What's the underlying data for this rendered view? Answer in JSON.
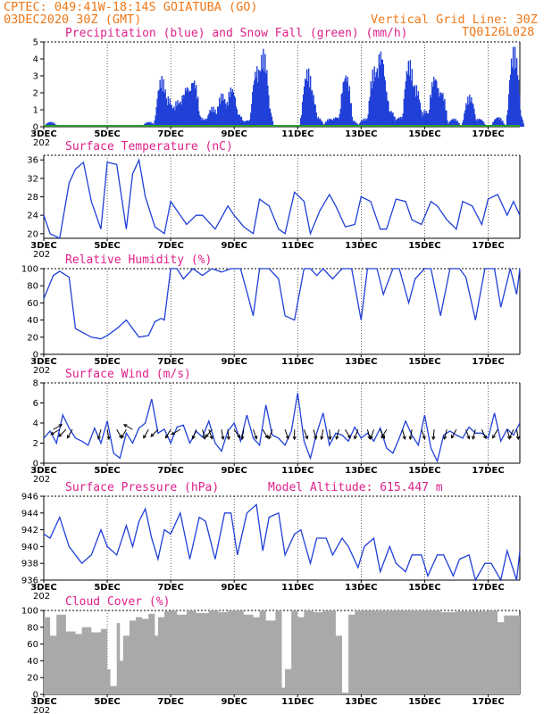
{
  "header": {
    "line1": "CPTEC:   049:41W-18:14S  GOIATUBA (GO)",
    "line2_left": "03DEC2020 30Z (GMT)",
    "line2_right": "Vertical Grid Line: 30Z",
    "line3_right": "TQ0126L028"
  },
  "x_axis": {
    "day_range": [
      3,
      18
    ],
    "tick_days": [
      3,
      5,
      7,
      9,
      11,
      13,
      15,
      17
    ],
    "tick_labels": [
      "3DEC",
      "5DEC",
      "7DEC",
      "9DEC",
      "11DEC",
      "13DEC",
      "15DEC",
      "17DEC"
    ],
    "sub_label": "202"
  },
  "colors": {
    "curve": "#2040d8",
    "snow": "#2a9a2a",
    "cloud": "#a9a9a9",
    "title": "#e0208a",
    "header": "#f07818"
  },
  "chart_data": [
    {
      "id": "precip",
      "type": "bar",
      "title": "Precipitation (blue) and Snow Fall (green) (mm/h)",
      "ylim": [
        0,
        5
      ],
      "yticks": [
        0,
        1,
        2,
        3,
        4,
        5
      ],
      "series": [
        {
          "name": "Precipitation",
          "events": [
            [
              3.2,
              0.3
            ],
            [
              6.3,
              0.3
            ],
            [
              6.7,
              3.0
            ],
            [
              6.9,
              1.8
            ],
            [
              7.0,
              1.2
            ],
            [
              7.2,
              1.6
            ],
            [
              7.4,
              2.0
            ],
            [
              7.5,
              2.5
            ],
            [
              7.7,
              2.9
            ],
            [
              7.9,
              0.6
            ],
            [
              8.1,
              0.5
            ],
            [
              8.2,
              0.4
            ],
            [
              8.3,
              1.2
            ],
            [
              8.6,
              2.0
            ],
            [
              8.9,
              2.4
            ],
            [
              9.1,
              0.8
            ],
            [
              9.4,
              0.4
            ],
            [
              9.7,
              3.6
            ],
            [
              9.9,
              4.6
            ],
            [
              10.0,
              1.5
            ],
            [
              11.3,
              3.5
            ],
            [
              11.4,
              2.2
            ],
            [
              11.6,
              0.6
            ],
            [
              12.0,
              0.5
            ],
            [
              12.2,
              0.6
            ],
            [
              12.5,
              3.2
            ],
            [
              12.7,
              0.4
            ],
            [
              13.1,
              0.5
            ],
            [
              13.4,
              3.6
            ],
            [
              13.6,
              4.6
            ],
            [
              13.7,
              2.5
            ],
            [
              13.9,
              1.0
            ],
            [
              14.2,
              0.6
            ],
            [
              14.5,
              4.0
            ],
            [
              14.7,
              2.5
            ],
            [
              15.0,
              1.0
            ],
            [
              15.3,
              3.1
            ],
            [
              15.5,
              2.2
            ],
            [
              15.9,
              0.5
            ],
            [
              16.4,
              1.9
            ],
            [
              16.7,
              0.5
            ],
            [
              17.3,
              0.6
            ],
            [
              17.8,
              4.8
            ],
            [
              17.9,
              1.0
            ]
          ]
        },
        {
          "name": "Snow Fall",
          "values": 0
        }
      ]
    },
    {
      "id": "temperature",
      "type": "line",
      "title": "Surface Temperature (nC)",
      "ylim": [
        19,
        37
      ],
      "yticks": [
        20,
        24,
        28,
        32,
        36
      ],
      "x": [
        3.0,
        3.2,
        3.5,
        3.8,
        4.0,
        4.25,
        4.5,
        4.8,
        5.0,
        5.3,
        5.6,
        5.8,
        6.0,
        6.2,
        6.5,
        6.8,
        7.0,
        7.2,
        7.5,
        7.8,
        8.0,
        8.4,
        8.8,
        9.0,
        9.3,
        9.6,
        9.8,
        10.1,
        10.4,
        10.6,
        10.9,
        11.2,
        11.4,
        11.7,
        12.0,
        12.2,
        12.5,
        12.8,
        13.0,
        13.3,
        13.6,
        13.8,
        14.1,
        14.4,
        14.6,
        14.9,
        15.2,
        15.4,
        15.7,
        16.0,
        16.2,
        16.5,
        16.8,
        17.0,
        17.3,
        17.6,
        17.8,
        18.0
      ],
      "y": [
        24,
        20,
        19,
        31,
        34,
        35.5,
        27,
        21,
        35.5,
        35,
        21,
        33,
        36,
        28,
        21.5,
        20,
        27,
        25,
        22,
        24,
        24,
        21,
        26,
        24,
        21.5,
        20,
        27.5,
        26,
        21,
        20,
        29,
        27,
        20,
        25,
        28.5,
        26,
        21.5,
        22,
        28,
        27,
        21,
        21,
        27.5,
        27,
        23,
        22,
        27,
        26,
        23,
        21,
        27,
        26,
        22,
        27.5,
        28.5,
        24,
        27,
        24
      ]
    },
    {
      "id": "humidity",
      "type": "line",
      "title": "Relative Humidity (%)",
      "ylim": [
        0,
        100
      ],
      "yticks": [
        0,
        20,
        40,
        60,
        80,
        100
      ],
      "x": [
        3.0,
        3.3,
        3.5,
        3.8,
        4.0,
        4.5,
        4.8,
        5.0,
        5.3,
        5.6,
        6.0,
        6.3,
        6.5,
        6.7,
        6.8,
        7.0,
        7.2,
        7.4,
        7.7,
        8.0,
        8.3,
        8.6,
        8.9,
        9.2,
        9.4,
        9.6,
        9.8,
        10.1,
        10.4,
        10.6,
        10.9,
        11.2,
        11.4,
        11.6,
        11.8,
        12.1,
        12.4,
        12.7,
        13.0,
        13.2,
        13.5,
        13.7,
        14.0,
        14.2,
        14.5,
        14.7,
        15.0,
        15.2,
        15.5,
        15.8,
        16.1,
        16.3,
        16.6,
        16.9,
        17.2,
        17.4,
        17.7,
        17.9,
        18.0
      ],
      "y": [
        65,
        92,
        97,
        90,
        30,
        20,
        18,
        22,
        30,
        40,
        20,
        22,
        38,
        42,
        40,
        100,
        100,
        88,
        100,
        92,
        100,
        96,
        100,
        100,
        73,
        45,
        100,
        100,
        88,
        45,
        40,
        100,
        100,
        92,
        100,
        88,
        100,
        100,
        40,
        100,
        100,
        70,
        100,
        100,
        60,
        88,
        100,
        100,
        45,
        100,
        100,
        90,
        40,
        100,
        100,
        55,
        100,
        70,
        100
      ]
    },
    {
      "id": "wind",
      "type": "line",
      "title": "Surface Wind (m/s)",
      "ylim": [
        0,
        8
      ],
      "yticks": [
        0,
        2,
        4,
        6,
        8
      ],
      "x": [
        3.0,
        3.2,
        3.4,
        3.6,
        3.8,
        4.0,
        4.2,
        4.4,
        4.6,
        4.8,
        5.0,
        5.2,
        5.4,
        5.6,
        5.8,
        6.0,
        6.2,
        6.4,
        6.6,
        6.8,
        7.0,
        7.2,
        7.4,
        7.6,
        7.8,
        8.0,
        8.2,
        8.4,
        8.6,
        8.8,
        9.0,
        9.2,
        9.4,
        9.6,
        9.8,
        10.0,
        10.2,
        10.4,
        10.6,
        10.8,
        11.0,
        11.2,
        11.4,
        11.6,
        11.8,
        12.0,
        12.2,
        12.4,
        12.6,
        12.8,
        13.0,
        13.2,
        13.4,
        13.6,
        13.8,
        14.0,
        14.2,
        14.4,
        14.6,
        14.8,
        15.0,
        15.2,
        15.4,
        15.6,
        15.8,
        16.0,
        16.2,
        16.4,
        16.6,
        16.8,
        17.0,
        17.2,
        17.4,
        17.6,
        17.8,
        18.0
      ],
      "y": [
        2.5,
        3.2,
        2.0,
        4.8,
        3.5,
        2.5,
        2.2,
        1.8,
        3.5,
        2.0,
        4.2,
        1.0,
        0.5,
        3.0,
        2.0,
        3.5,
        4.0,
        6.4,
        3.0,
        3.4,
        2.0,
        3.6,
        3.8,
        2.0,
        3.2,
        2.6,
        4.2,
        2.0,
        1.2,
        3.2,
        4.0,
        2.2,
        4.8,
        2.5,
        1.8,
        5.8,
        2.8,
        2.5,
        1.8,
        3.2,
        7.0,
        2.2,
        0.5,
        3.0,
        5.0,
        1.8,
        3.0,
        2.8,
        2.2,
        3.6,
        2.5,
        3.0,
        2.2,
        3.5,
        1.5,
        1.0,
        2.5,
        4.2,
        2.8,
        1.8,
        4.8,
        1.5,
        0.2,
        2.8,
        3.2,
        2.8,
        2.5,
        3.6,
        3.0,
        3.0,
        2.5,
        5.0,
        2.2,
        3.4,
        2.8,
        4.0
      ],
      "vectors": [
        [
          3.3,
          120
        ],
        [
          3.5,
          -60
        ],
        [
          3.7,
          -45
        ],
        [
          3.9,
          -30
        ],
        [
          4.8,
          -15
        ],
        [
          5.0,
          10
        ],
        [
          5.3,
          30
        ],
        [
          5.6,
          -30
        ],
        [
          5.8,
          -120
        ],
        [
          6.3,
          -30
        ],
        [
          6.6,
          -45
        ],
        [
          7.0,
          -30
        ],
        [
          7.3,
          -60
        ],
        [
          7.8,
          -20
        ],
        [
          8.0,
          15
        ],
        [
          8.2,
          20
        ],
        [
          8.3,
          -40
        ],
        [
          8.6,
          10
        ],
        [
          8.8,
          5
        ],
        [
          9.0,
          35
        ],
        [
          9.3,
          -10
        ],
        [
          9.6,
          20
        ],
        [
          9.9,
          30
        ],
        [
          10.2,
          -20
        ],
        [
          10.6,
          20
        ],
        [
          10.9,
          0
        ],
        [
          11.2,
          20
        ],
        [
          11.5,
          15
        ],
        [
          11.8,
          -10
        ],
        [
          12.0,
          5
        ],
        [
          12.3,
          -15
        ],
        [
          12.5,
          30
        ],
        [
          12.9,
          -20
        ],
        [
          13.2,
          15
        ],
        [
          13.4,
          -20
        ],
        [
          13.6,
          25
        ],
        [
          13.8,
          -30
        ],
        [
          14.3,
          15
        ],
        [
          14.6,
          -10
        ],
        [
          14.9,
          20
        ],
        [
          15.3,
          -5
        ],
        [
          15.7,
          -15
        ],
        [
          16.0,
          -30
        ],
        [
          16.3,
          20
        ],
        [
          16.6,
          -15
        ],
        [
          16.8,
          25
        ],
        [
          17.3,
          -30
        ],
        [
          17.6,
          15
        ],
        [
          17.8,
          -25
        ],
        [
          17.9,
          10
        ]
      ]
    },
    {
      "id": "pressure",
      "type": "line",
      "title": "Surface Pressure (hPa)",
      "annotation": "Model Altitude: 615.447 m",
      "ylim": [
        936,
        946
      ],
      "yticks": [
        936,
        938,
        940,
        942,
        944,
        946
      ],
      "x": [
        3.0,
        3.2,
        3.5,
        3.8,
        4.0,
        4.2,
        4.5,
        4.8,
        5.0,
        5.3,
        5.6,
        5.8,
        6.0,
        6.2,
        6.4,
        6.6,
        6.8,
        7.0,
        7.3,
        7.6,
        7.9,
        8.1,
        8.4,
        8.7,
        8.9,
        9.1,
        9.4,
        9.7,
        9.9,
        10.1,
        10.4,
        10.6,
        10.9,
        11.1,
        11.4,
        11.6,
        11.9,
        12.1,
        12.4,
        12.6,
        12.9,
        13.1,
        13.4,
        13.6,
        13.9,
        14.1,
        14.4,
        14.6,
        14.9,
        15.1,
        15.4,
        15.6,
        15.9,
        16.1,
        16.4,
        16.6,
        16.9,
        17.1,
        17.4,
        17.6,
        17.9,
        18.0
      ],
      "y": [
        941.5,
        941,
        943.5,
        940,
        939,
        938,
        939,
        942,
        940,
        939,
        942.5,
        940,
        943,
        944.5,
        941,
        938.5,
        942,
        941.5,
        944,
        938.5,
        943.5,
        943,
        938.5,
        944,
        944,
        939,
        944,
        945,
        939.5,
        943.5,
        944,
        939,
        941.5,
        942,
        938,
        941,
        941,
        939,
        941,
        940,
        937.5,
        940,
        941,
        937,
        940,
        938,
        937,
        939,
        939,
        936.5,
        939,
        939,
        936.5,
        938.5,
        939,
        936,
        938,
        938,
        936,
        939.5,
        936,
        939.5
      ]
    },
    {
      "id": "cloud",
      "type": "area",
      "title": "Cloud Cover (%)",
      "ylim": [
        0,
        100
      ],
      "yticks": [
        0,
        20,
        40,
        60,
        80,
        100
      ],
      "x": [
        3.0,
        3.2,
        3.4,
        3.7,
        4.0,
        4.2,
        4.5,
        4.8,
        5.0,
        5.1,
        5.3,
        5.4,
        5.5,
        5.7,
        5.9,
        6.1,
        6.3,
        6.5,
        6.6,
        6.8,
        7.0,
        7.2,
        7.5,
        7.8,
        8.0,
        8.2,
        8.5,
        8.8,
        9.0,
        9.3,
        9.6,
        9.8,
        10.0,
        10.3,
        10.5,
        10.6,
        10.8,
        11.0,
        11.2,
        11.5,
        11.8,
        12.0,
        12.2,
        12.4,
        12.6,
        12.8,
        13.0,
        13.5,
        14.0,
        14.5,
        15.0,
        15.5,
        16.0,
        16.5,
        17.0,
        17.3,
        17.5,
        18.0
      ],
      "y": [
        92,
        70,
        95,
        75,
        72,
        80,
        74,
        78,
        30,
        10,
        85,
        40,
        70,
        88,
        92,
        90,
        96,
        70,
        92,
        99,
        100,
        95,
        100,
        97,
        97,
        100,
        98,
        100,
        100,
        95,
        92,
        100,
        88,
        100,
        8,
        30,
        100,
        92,
        100,
        98,
        100,
        100,
        70,
        2,
        95,
        100,
        100,
        100,
        100,
        100,
        100,
        98,
        99,
        99,
        100,
        86,
        94,
        98
      ]
    }
  ]
}
